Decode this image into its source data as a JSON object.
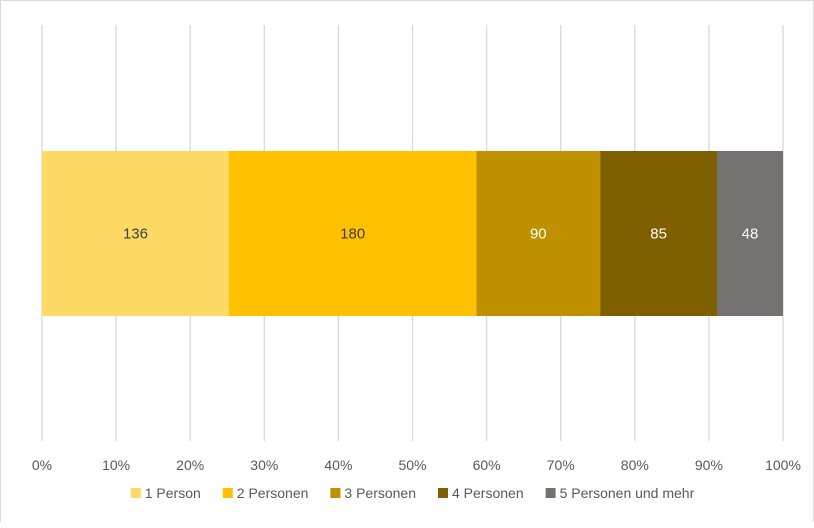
{
  "chart_data": {
    "type": "bar",
    "orientation": "horizontal",
    "stacked": "percent",
    "categories": [
      ""
    ],
    "series": [
      {
        "name": "1 Person",
        "values": [
          136
        ],
        "color": "#FFD966"
      },
      {
        "name": "2 Personen",
        "values": [
          180
        ],
        "color": "#FFC000"
      },
      {
        "name": "3 Personen",
        "values": [
          90
        ],
        "color": "#BF9000"
      },
      {
        "name": "4 Personen",
        "values": [
          85
        ],
        "color": "#7F6000"
      },
      {
        "name": "5 Personen und mehr",
        "values": [
          48
        ],
        "color": "#767171"
      }
    ],
    "data_label_colors": [
      "#404040",
      "#404040",
      "#ffffff",
      "#ffffff",
      "#ffffff"
    ],
    "x_ticks": [
      "0%",
      "10%",
      "20%",
      "30%",
      "40%",
      "50%",
      "60%",
      "70%",
      "80%",
      "90%",
      "100%"
    ],
    "xlim": [
      0,
      100
    ],
    "grid": true,
    "gridline_color": "#d9d9d9",
    "legend_position": "bottom",
    "title": "",
    "xlabel": "",
    "ylabel": ""
  }
}
